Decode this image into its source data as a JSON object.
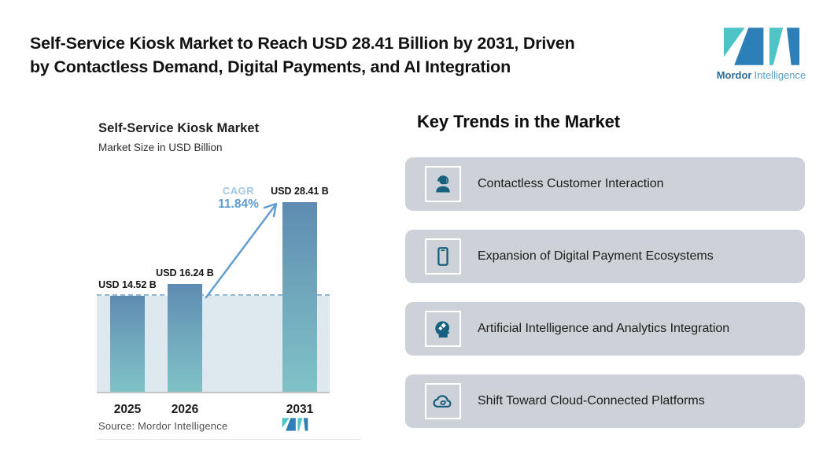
{
  "header": {
    "title_line1": "Self-Service Kiosk Market to Reach USD 28.41 Billion by 2031, Driven",
    "title_line2": "by Contactless Demand, Digital Payments, and AI Integration"
  },
  "logo": {
    "brand_bold": "Mordor",
    "brand_light": "Intelligence"
  },
  "chart": {
    "title": "Self-Service Kiosk Market",
    "subtitle": "Market Size in USD Billion",
    "cagr_label": "CAGR",
    "cagr_value": "11.84%",
    "source": "Source: Mordor Intelligence",
    "bars": [
      {
        "year": "2025",
        "label": "USD 14.52 B"
      },
      {
        "year": "2026",
        "label": "USD 16.24 B"
      },
      {
        "year": "2031",
        "label": "USD 28.41 B"
      }
    ]
  },
  "chart_data": {
    "type": "bar",
    "title": "Self-Service Kiosk Market",
    "subtitle": "Market Size in USD Billion",
    "categories": [
      "2025",
      "2026",
      "2031"
    ],
    "values": [
      14.52,
      16.24,
      28.41
    ],
    "value_labels": [
      "USD 14.52 B",
      "USD 16.24 B",
      "USD 28.41 B"
    ],
    "cagr_percent": 11.84,
    "ylim": [
      0,
      28.41
    ],
    "xlabel": "",
    "ylabel": "Market Size in USD Billion",
    "grid": false,
    "annotations": [
      "CAGR 11.84%",
      "dashed reference line at 2025 level"
    ],
    "source": "Source: Mordor Intelligence"
  },
  "trends": {
    "heading": "Key Trends in the Market",
    "items": [
      {
        "icon": "support-agent-icon",
        "label": "Contactless Customer Interaction"
      },
      {
        "icon": "smartphone-icon",
        "label": "Expansion of Digital Payment Ecosystems"
      },
      {
        "icon": "ai-head-icon",
        "label": "Artificial Intelligence and Analytics Integration"
      },
      {
        "icon": "cloud-sync-icon",
        "label": "Shift Toward Cloud-Connected Platforms"
      }
    ]
  },
  "colors": {
    "accent_teal": "#4ec4c6",
    "accent_blue": "#2d7fb8",
    "bar_gradient_top": "#5e8bb1",
    "bar_gradient_bottom": "#80c3c7",
    "reference_band": "#dde8ef",
    "dashed_line": "#8fb8d6",
    "cagr_text": "#5f9cd1",
    "trend_card_bg": "#ccd2d8",
    "trend_icon": "#17607f"
  }
}
